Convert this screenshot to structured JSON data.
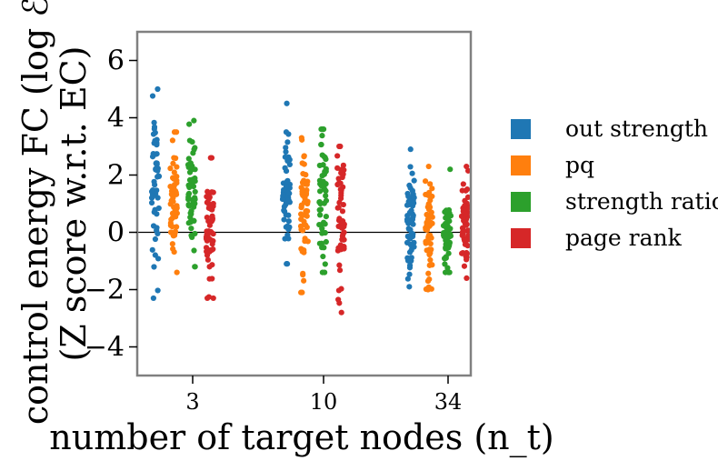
{
  "chart_data": {
    "type": "scatter",
    "title": "",
    "xlabel": "number of target nodes (n_t)",
    "ylabel_line1": "control energy FC (log ℰ)",
    "ylabel_line2": "(Z score w.r.t. EC)",
    "categories": [
      "3",
      "10",
      "34"
    ],
    "ylim": [
      -5,
      7
    ],
    "yticks": [
      -4,
      -2,
      0,
      2,
      4,
      6
    ],
    "ytick_labels": [
      "−4",
      "−2",
      "0",
      "2",
      "4",
      "6"
    ],
    "reference_line": 0,
    "grid": false,
    "legend_position": "right",
    "series": [
      {
        "name": "out strength",
        "color": "#1f77b4",
        "summary": [
          {
            "min": -2.3,
            "max": 5.0,
            "center": 1.8
          },
          {
            "min": -1.1,
            "max": 4.5,
            "center": 1.4
          },
          {
            "min": -1.9,
            "max": 2.9,
            "center": 0.2
          }
        ]
      },
      {
        "name": "pq",
        "color": "#ff7f0e",
        "summary": [
          {
            "min": -1.4,
            "max": 3.5,
            "center": 1.1
          },
          {
            "min": -2.1,
            "max": 3.3,
            "center": 0.8
          },
          {
            "min": -2.0,
            "max": 2.3,
            "center": 0.1
          }
        ]
      },
      {
        "name": "strength ratio",
        "color": "#2ca02c",
        "summary": [
          {
            "min": -1.2,
            "max": 3.9,
            "center": 1.4
          },
          {
            "min": -1.4,
            "max": 3.6,
            "center": 1.3
          },
          {
            "min": -1.4,
            "max": 2.2,
            "center": -0.1
          }
        ]
      },
      {
        "name": "page rank",
        "color": "#d62728",
        "summary": [
          {
            "min": -2.3,
            "max": 2.6,
            "center": -0.1
          },
          {
            "min": -2.8,
            "max": 3.0,
            "center": 0.6
          },
          {
            "min": -1.6,
            "max": 2.3,
            "center": 0.2
          }
        ]
      }
    ]
  }
}
